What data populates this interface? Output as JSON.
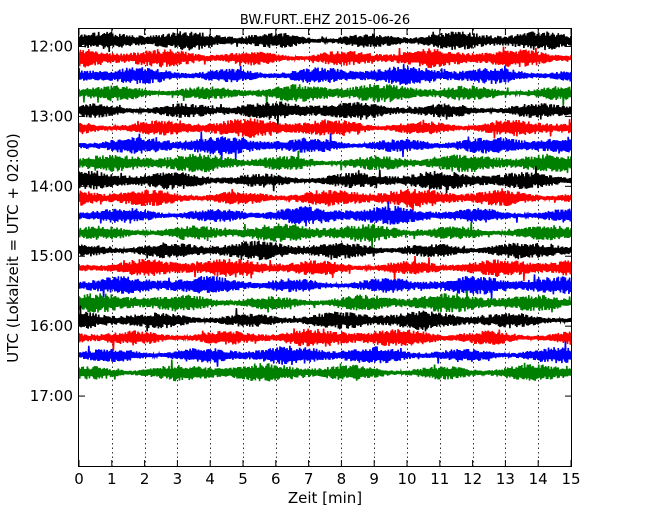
{
  "chart_data": {
    "type": "line",
    "title": "BW.FURT..EHZ 2015-06-26",
    "xlabel": "Zeit  [min]",
    "ylabel": "UTC (Lokalzeit = UTC + 02:00)",
    "xlim": [
      0,
      15
    ],
    "x_ticks": [
      "0",
      "1",
      "2",
      "3",
      "4",
      "5",
      "6",
      "7",
      "8",
      "9",
      "10",
      "11",
      "12",
      "13",
      "14",
      "15"
    ],
    "y_ticks": [
      "12:00",
      "13:00",
      "14:00",
      "15:00",
      "16:00",
      "17:00"
    ],
    "ylim_hours": [
      11.75,
      18.0
    ],
    "trace_interval_min": 15,
    "first_trace": "11:55",
    "last_trace": "16:45",
    "trace_colors": [
      "#000000",
      "#ff0000",
      "#0000ff",
      "#008000"
    ],
    "vertical_grid": "dotted",
    "horizontal_grid": "off"
  }
}
